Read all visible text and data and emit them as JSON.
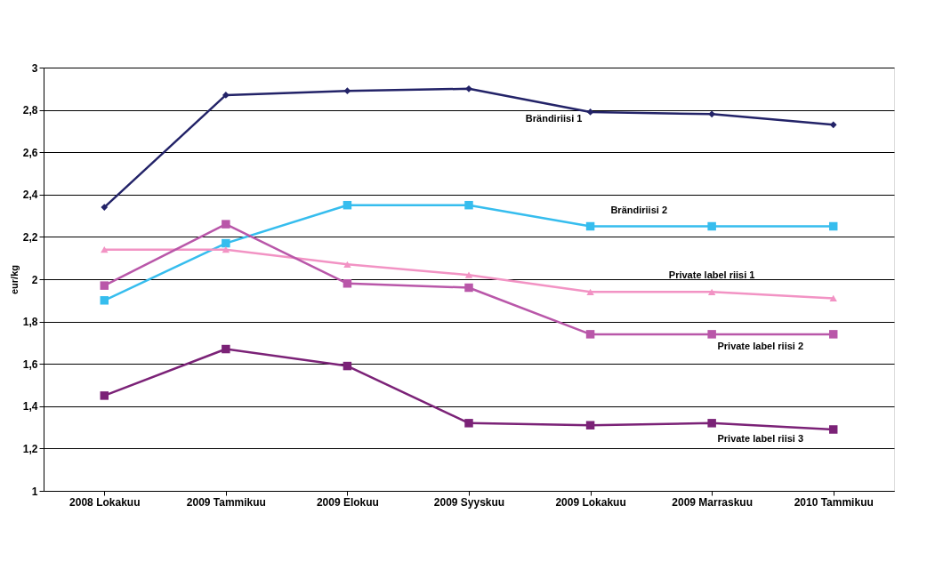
{
  "chart_data": {
    "type": "line",
    "ylabel": "eur/kg",
    "categories": [
      "2008 Lokakuu",
      "2009  Tammikuu",
      "2009 Elokuu",
      "2009 Syyskuu",
      "2009 Lokakuu",
      "2009 Marraskuu",
      "2010 Tammikuu"
    ],
    "series": [
      {
        "name": "Brändiriisi 1",
        "color": "#232368",
        "marker": "diamond",
        "values": [
          2.34,
          2.87,
          2.89,
          2.9,
          2.79,
          2.78,
          2.73
        ]
      },
      {
        "name": "Brändiriisi 2",
        "color": "#36bdee",
        "marker": "square",
        "values": [
          1.9,
          2.17,
          2.35,
          2.35,
          2.25,
          2.25,
          2.25
        ]
      },
      {
        "name": "Private label riisi 1",
        "color": "#f293c4",
        "marker": "triangle",
        "values": [
          2.14,
          2.14,
          2.07,
          2.02,
          1.94,
          1.94,
          1.91
        ]
      },
      {
        "name": "Private label riisi 2",
        "color": "#b957a9",
        "marker": "square",
        "values": [
          1.97,
          2.26,
          1.98,
          1.96,
          1.74,
          1.74,
          1.74
        ]
      },
      {
        "name": "Private label riisi 3",
        "color": "#7b2277",
        "marker": "square",
        "values": [
          1.45,
          1.67,
          1.59,
          1.32,
          1.31,
          1.32,
          1.29
        ]
      }
    ],
    "ylim": [
      1,
      3
    ],
    "yticks": [
      1,
      {
        "value": 1.2,
        "label": "1,2"
      },
      {
        "value": 1.4,
        "label": "1,4"
      },
      {
        "value": 1.6,
        "label": "1,6"
      },
      {
        "value": 1.8,
        "label": "1,8"
      },
      2,
      {
        "value": 2.2,
        "label": "2,2"
      },
      {
        "value": 2.4,
        "label": "2,4"
      },
      {
        "value": 2.6,
        "label": "2,6"
      },
      {
        "value": 2.8,
        "label": "2,8"
      },
      3
    ],
    "grid": "y",
    "legend": false,
    "line_style": "solid"
  }
}
